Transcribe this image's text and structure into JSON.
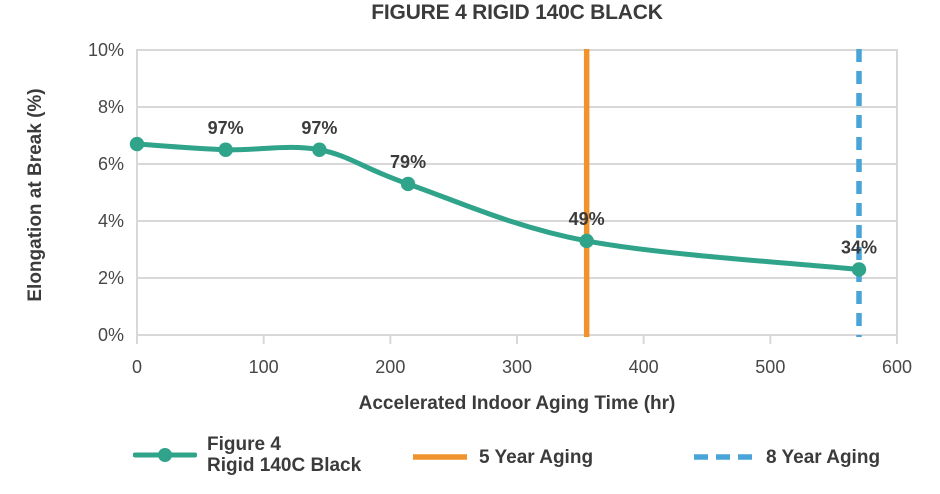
{
  "chart_data": {
    "type": "line",
    "title": "FIGURE 4 RIGID 140C BLACK",
    "xlabel": "Accelerated Indoor Aging Time (hr)",
    "ylabel": "Elongation at Break (%)",
    "xlim": [
      0,
      600
    ],
    "ylim": [
      0,
      10
    ],
    "x_ticks": [
      0,
      100,
      200,
      300,
      400,
      500,
      600
    ],
    "x_tick_labels": [
      "0",
      "100",
      "200",
      "300",
      "400",
      "500",
      "600"
    ],
    "y_ticks": [
      0,
      2,
      4,
      6,
      8,
      10
    ],
    "y_tick_labels": [
      "0%",
      "2%",
      "4%",
      "6%",
      "8%",
      "10%"
    ],
    "grid": true,
    "legend_position": "bottom",
    "series": [
      {
        "name": "Figure 4 Rigid 140C Black",
        "x": [
          0,
          70,
          144,
          214,
          355,
          570
        ],
        "y": [
          6.7,
          6.5,
          6.5,
          5.3,
          3.3,
          2.3
        ],
        "point_labels": [
          "",
          "97%",
          "97%",
          "79%",
          "49%",
          "34%"
        ],
        "color": "#2FA48A",
        "marker": "circle",
        "smooth": true
      }
    ],
    "vlines": [
      {
        "label": "5 Year Aging",
        "x": 355,
        "color": "#F0932C",
        "style": "solid"
      },
      {
        "label": "8 Year Aging",
        "x": 570,
        "color": "#48A4D9",
        "style": "dashed"
      }
    ]
  },
  "legend": {
    "series_line1": "Figure 4",
    "series_line2": "Rigid 140C Black",
    "five_year": "5 Year Aging",
    "eight_year": "8 Year Aging"
  },
  "colors": {
    "series": "#2FA48A",
    "five_year": "#F0932C",
    "eight_year": "#48A4D9",
    "text": "#3B3B3B",
    "tick_text": "#474747",
    "grid": "#D8D8D8"
  }
}
